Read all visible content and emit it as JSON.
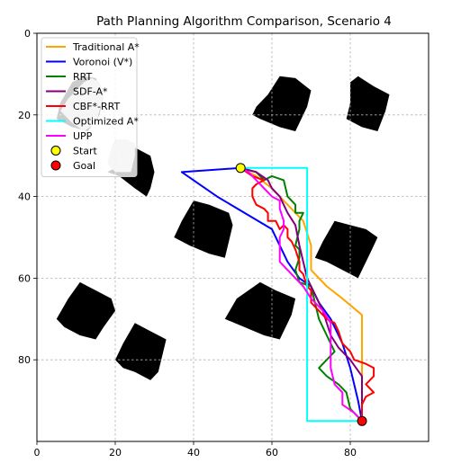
{
  "chart_data": {
    "type": "line",
    "title": "Path Planning Algorithm Comparison, Scenario 4",
    "xlabel": "",
    "ylabel": "",
    "xlim": [
      0,
      100
    ],
    "ylim": [
      100,
      0
    ],
    "y_inverted": true,
    "xticks": [
      0,
      20,
      40,
      60,
      80
    ],
    "yticks": [
      0,
      20,
      40,
      60,
      80
    ],
    "grid": true,
    "legend_position": "top-left",
    "obstacles": [
      {
        "name": "obstacle-1",
        "color": "#000000",
        "polygon": [
          [
            59,
            15
          ],
          [
            62,
            10.5
          ],
          [
            66,
            11
          ],
          [
            70,
            14
          ],
          [
            69,
            18
          ],
          [
            66,
            24
          ],
          [
            62,
            23
          ],
          [
            57,
            21
          ],
          [
            55,
            20
          ],
          [
            56,
            18
          ]
        ]
      },
      {
        "name": "obstacle-2",
        "color": "#000000",
        "polygon": [
          [
            80,
            12
          ],
          [
            82,
            10.5
          ],
          [
            86,
            13
          ],
          [
            90,
            15
          ],
          [
            89,
            19
          ],
          [
            87,
            24
          ],
          [
            83,
            23
          ],
          [
            79,
            21
          ],
          [
            80,
            17
          ]
        ]
      },
      {
        "name": "obstacle-3",
        "color": "#000000",
        "polygon": [
          [
            6,
            17
          ],
          [
            9,
            12
          ],
          [
            12,
            10.5
          ],
          [
            15,
            11
          ],
          [
            17,
            15
          ],
          [
            16,
            20
          ],
          [
            13,
            24
          ],
          [
            9,
            23
          ],
          [
            5,
            21
          ]
        ]
      },
      {
        "name": "obstacle-4",
        "color": "#000000",
        "polygon": [
          [
            20,
            33
          ],
          [
            25,
            28
          ],
          [
            29,
            30
          ],
          [
            30,
            34
          ],
          [
            29,
            38
          ],
          [
            28,
            40
          ],
          [
            25,
            38
          ],
          [
            21,
            35
          ],
          [
            18,
            34
          ]
        ]
      },
      {
        "name": "obstacle-5",
        "color": "#000000",
        "polygon": [
          [
            40,
            41
          ],
          [
            44,
            42
          ],
          [
            49,
            44
          ],
          [
            50,
            47
          ],
          [
            49,
            51
          ],
          [
            48,
            55
          ],
          [
            44,
            54
          ],
          [
            39,
            52
          ],
          [
            35,
            50
          ],
          [
            37,
            46
          ]
        ]
      },
      {
        "name": "obstacle-6",
        "color": "#000000",
        "polygon": [
          [
            76,
            46
          ],
          [
            80,
            47
          ],
          [
            84,
            48
          ],
          [
            87,
            50
          ],
          [
            85,
            54
          ],
          [
            82,
            60
          ],
          [
            78,
            58
          ],
          [
            74,
            56
          ],
          [
            71,
            55
          ],
          [
            73,
            51
          ]
        ]
      },
      {
        "name": "obstacle-7",
        "color": "#000000",
        "polygon": [
          [
            11,
            61
          ],
          [
            15,
            63
          ],
          [
            19,
            65
          ],
          [
            20,
            68
          ],
          [
            17,
            72
          ],
          [
            15,
            75
          ],
          [
            11,
            74
          ],
          [
            7,
            72
          ],
          [
            5,
            70
          ],
          [
            8,
            65
          ]
        ]
      },
      {
        "name": "obstacle-8",
        "color": "#000000",
        "polygon": [
          [
            57,
            61
          ],
          [
            61,
            63
          ],
          [
            66,
            65
          ],
          [
            65,
            69
          ],
          [
            63,
            73
          ],
          [
            62,
            75
          ],
          [
            58,
            74
          ],
          [
            53,
            72
          ],
          [
            48,
            70
          ],
          [
            51,
            65
          ]
        ]
      },
      {
        "name": "obstacle-9",
        "color": "#000000",
        "polygon": [
          [
            25,
            71
          ],
          [
            29,
            73
          ],
          [
            33,
            75
          ],
          [
            32,
            79
          ],
          [
            31,
            83
          ],
          [
            29,
            85
          ],
          [
            25,
            83
          ],
          [
            22,
            82
          ],
          [
            20,
            80
          ],
          [
            22,
            76
          ]
        ]
      },
      {
        "name": "bubble-1",
        "color": "#d3d3d3",
        "polygon": [
          [
            6,
            19
          ],
          [
            8,
            16
          ],
          [
            10,
            14
          ],
          [
            12,
            12
          ],
          [
            14,
            11
          ],
          [
            16,
            12
          ],
          [
            17,
            15
          ],
          [
            16,
            19
          ],
          [
            15,
            22
          ],
          [
            12,
            24
          ],
          [
            9,
            22
          ]
        ]
      },
      {
        "name": "bubble-2",
        "color": "#d3d3d3",
        "polygon": [
          [
            19,
            28
          ],
          [
            20,
            26
          ],
          [
            23,
            26
          ],
          [
            25,
            27
          ],
          [
            25,
            30
          ],
          [
            24,
            34
          ],
          [
            20,
            34
          ],
          [
            18,
            32
          ]
        ]
      }
    ],
    "series": [
      {
        "name": "Traditional A*",
        "color": "#ffa500",
        "points": [
          [
            52,
            33
          ],
          [
            56,
            35
          ],
          [
            60,
            38
          ],
          [
            64,
            42
          ],
          [
            68,
            46
          ],
          [
            70,
            52
          ],
          [
            70,
            58
          ],
          [
            74,
            62
          ],
          [
            78,
            65
          ],
          [
            83,
            69
          ],
          [
            83,
            76
          ],
          [
            83,
            84
          ],
          [
            83,
            92
          ],
          [
            83,
            95
          ]
        ]
      },
      {
        "name": "Voronoi (V*)",
        "color": "#0000ff",
        "points": [
          [
            52,
            33
          ],
          [
            37,
            34
          ],
          [
            46,
            40
          ],
          [
            60,
            48
          ],
          [
            62,
            52
          ],
          [
            64,
            56
          ],
          [
            67,
            60
          ],
          [
            70,
            62
          ],
          [
            72,
            66
          ],
          [
            75,
            70
          ],
          [
            78,
            76
          ],
          [
            80,
            82
          ],
          [
            82,
            90
          ],
          [
            83,
            95
          ]
        ]
      },
      {
        "name": "RRT",
        "color": "#008000",
        "points": [
          [
            52,
            33
          ],
          [
            56,
            34
          ],
          [
            58,
            36
          ],
          [
            60,
            35
          ],
          [
            63,
            36
          ],
          [
            64,
            40
          ],
          [
            66,
            42
          ],
          [
            66,
            44
          ],
          [
            68,
            44
          ],
          [
            67,
            46
          ],
          [
            67,
            48
          ],
          [
            66,
            52
          ],
          [
            67,
            53
          ],
          [
            67,
            55
          ],
          [
            66,
            58
          ],
          [
            67,
            61
          ],
          [
            70,
            62
          ],
          [
            71,
            66
          ],
          [
            72,
            70
          ],
          [
            74,
            74
          ],
          [
            76,
            78
          ],
          [
            74,
            80
          ],
          [
            72,
            82
          ],
          [
            74,
            84
          ],
          [
            77,
            86
          ],
          [
            79,
            88
          ],
          [
            80,
            92
          ],
          [
            82,
            94
          ],
          [
            83,
            95
          ]
        ]
      },
      {
        "name": "SDF-A*",
        "color": "#800080",
        "points": [
          [
            52,
            33
          ],
          [
            56,
            34
          ],
          [
            59,
            36
          ],
          [
            60,
            38
          ],
          [
            62,
            40
          ],
          [
            64,
            44
          ],
          [
            66,
            47
          ],
          [
            67,
            52
          ],
          [
            68,
            56
          ],
          [
            69,
            60
          ],
          [
            71,
            64
          ],
          [
            73,
            68
          ],
          [
            75,
            74
          ],
          [
            77,
            77
          ],
          [
            80,
            80
          ],
          [
            83,
            84
          ],
          [
            83,
            88
          ],
          [
            83,
            95
          ]
        ]
      },
      {
        "name": "CBF*-RRT",
        "color": "#ff0000",
        "points": [
          [
            52,
            33
          ],
          [
            55,
            35
          ],
          [
            58,
            36
          ],
          [
            56,
            37
          ],
          [
            55,
            38
          ],
          [
            55,
            40
          ],
          [
            56,
            42
          ],
          [
            58,
            43
          ],
          [
            59,
            44
          ],
          [
            59,
            46
          ],
          [
            61,
            46
          ],
          [
            62,
            48
          ],
          [
            63,
            47
          ],
          [
            64,
            48
          ],
          [
            64,
            50
          ],
          [
            65,
            51
          ],
          [
            66,
            53
          ],
          [
            67,
            56
          ],
          [
            67,
            58
          ],
          [
            68,
            59
          ],
          [
            69,
            62
          ],
          [
            70,
            63
          ],
          [
            70,
            66
          ],
          [
            72,
            68
          ],
          [
            74,
            70
          ],
          [
            76,
            71
          ],
          [
            77,
            73
          ],
          [
            78,
            76
          ],
          [
            80,
            78
          ],
          [
            81,
            80
          ],
          [
            84,
            81
          ],
          [
            86,
            82
          ],
          [
            86,
            84
          ],
          [
            84,
            86
          ],
          [
            86,
            88
          ],
          [
            84,
            89
          ],
          [
            83,
            91
          ],
          [
            83,
            95
          ]
        ]
      },
      {
        "name": "Optimized A*",
        "color": "#00ffff",
        "points": [
          [
            52,
            33
          ],
          [
            69,
            33
          ],
          [
            69,
            95
          ],
          [
            83,
            95
          ]
        ]
      },
      {
        "name": "UPP",
        "color": "#ff00ff",
        "points": [
          [
            52,
            33
          ],
          [
            54,
            34
          ],
          [
            56,
            36
          ],
          [
            58,
            38
          ],
          [
            60,
            40
          ],
          [
            62,
            41
          ],
          [
            62,
            43
          ],
          [
            63,
            46
          ],
          [
            63,
            48
          ],
          [
            62,
            50
          ],
          [
            62,
            53
          ],
          [
            62,
            56
          ],
          [
            64,
            58
          ],
          [
            66,
            60
          ],
          [
            68,
            62
          ],
          [
            70,
            65
          ],
          [
            73,
            68
          ],
          [
            75,
            71
          ],
          [
            75,
            74
          ],
          [
            75,
            78
          ],
          [
            75,
            82
          ],
          [
            76,
            86
          ],
          [
            78,
            88
          ],
          [
            78,
            91
          ],
          [
            81,
            93
          ],
          [
            83,
            95
          ]
        ]
      }
    ],
    "markers": [
      {
        "name": "Start",
        "x": 52,
        "y": 33,
        "color": "#ffff00"
      },
      {
        "name": "Goal",
        "x": 83,
        "y": 95,
        "color": "#ff0000"
      }
    ]
  }
}
